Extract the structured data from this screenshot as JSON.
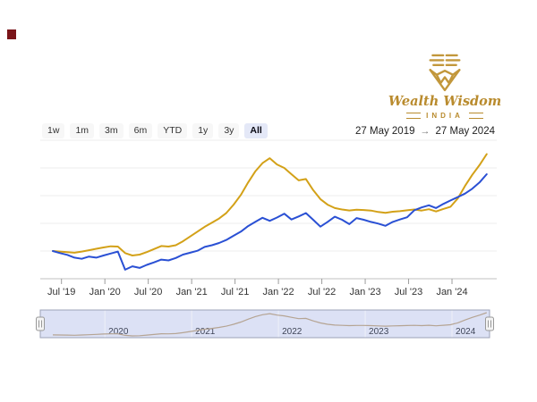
{
  "corner_mark": {
    "color": "#7a1519"
  },
  "brand": {
    "name": "Wealth Wisdom",
    "country": "INDIA",
    "gold": "#c2973b"
  },
  "range_selector": {
    "buttons": [
      {
        "label": "1w",
        "active": false
      },
      {
        "label": "1m",
        "active": false
      },
      {
        "label": "3m",
        "active": false
      },
      {
        "label": "6m",
        "active": false
      },
      {
        "label": "YTD",
        "active": false
      },
      {
        "label": "1y",
        "active": false
      },
      {
        "label": "3y",
        "active": false
      },
      {
        "label": "All",
        "active": true
      }
    ],
    "from_date": "27 May 2019",
    "arrow": "→",
    "to_date": "27 May 2024"
  },
  "chart_data": {
    "type": "line",
    "title": "",
    "xlabel": "",
    "ylabel": "",
    "y_axis_labels_visible": false,
    "note": "values are growth-index estimates (start = 100), read against unlabeled gridlines; x unit = months since 27 May 2019",
    "x_range_months": [
      0,
      60
    ],
    "ylim": [
      81,
      181
    ],
    "grid_values": [
      100,
      120,
      140,
      160,
      180
    ],
    "x_tick_labels": [
      "Jul '19",
      "Jan '20",
      "Jul '20",
      "Jan '21",
      "Jul '21",
      "Jan '22",
      "Jul '22",
      "Jan '23",
      "Jul '23",
      "Jan '24"
    ],
    "x_tick_months": [
      1.2,
      7.2,
      13.2,
      19.2,
      25.2,
      31.2,
      37.2,
      43.2,
      49.2,
      55.2
    ],
    "series": [
      {
        "name": "gold-series",
        "color": "#d3a118",
        "values": [
          100,
          99.6,
          99.2,
          98.8,
          99.6,
          100.6,
          101.6,
          102.6,
          103.4,
          103.2,
          98.5,
          96.8,
          97.4,
          99.2,
          101.4,
          103.6,
          103.2,
          104.2,
          107,
          110.5,
          114,
          117.5,
          120.5,
          123.5,
          127.5,
          133.5,
          140.5,
          149.5,
          157.5,
          163.5,
          167,
          162.5,
          160,
          155.5,
          151,
          152,
          144,
          137.5,
          133.5,
          131,
          130,
          129.3,
          129.8,
          129.6,
          129.2,
          128.2,
          127.6,
          128.4,
          128.8,
          129.4,
          130,
          129.2,
          130.2,
          128.6,
          130.4,
          132,
          138,
          147,
          155,
          162,
          170
        ]
      },
      {
        "name": "blue-series",
        "color": "#2a50d4",
        "values": [
          100,
          98.5,
          97.2,
          95.2,
          94.4,
          96,
          95.2,
          96.8,
          98.2,
          99.6,
          86.5,
          89,
          87.8,
          90,
          91.8,
          93.8,
          93.2,
          95,
          97.4,
          98.8,
          100.2,
          103,
          104.2,
          105.8,
          108,
          111,
          114,
          118,
          121,
          124,
          121.8,
          124.2,
          127,
          122.8,
          125,
          127.4,
          122.6,
          117.6,
          121,
          124.8,
          122.6,
          119.4,
          123.8,
          122.6,
          121,
          119.8,
          118.2,
          121,
          122.8,
          124.4,
          129.5,
          131.5,
          133,
          131,
          134,
          136.5,
          139,
          141.5,
          145,
          149.5,
          155.5
        ]
      }
    ],
    "navigator": {
      "year_labels": [
        "2020",
        "2021",
        "2022",
        "2023",
        "2024"
      ],
      "year_months": [
        7.2,
        19.2,
        31.2,
        43.2,
        55.2
      ],
      "fill": "#dce1f5",
      "outline": "#9ca3b8",
      "line_color": "#b5a493",
      "label_color": "#3f4558",
      "selected_range": "all"
    },
    "legend": {
      "visible": false
    },
    "colors": {
      "gridline": "#ececec",
      "axis_line": "#c0c0c0",
      "tick_label": "#333333"
    }
  }
}
